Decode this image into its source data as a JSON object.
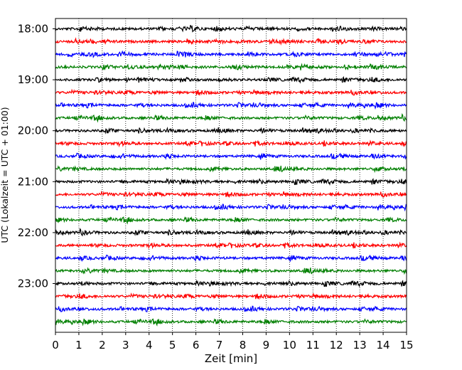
{
  "chart_data": {
    "type": "line",
    "title": "",
    "xlabel": "Zeit  [min]",
    "ylabel": "UTC (Lokalzeit = UTC + 01:00)",
    "xlim": [
      0,
      15
    ],
    "xticks": [
      "0",
      "1",
      "2",
      "3",
      "4",
      "5",
      "6",
      "7",
      "8",
      "9",
      "10",
      "11",
      "12",
      "13",
      "14",
      "15"
    ],
    "yticks": [
      "18:00",
      "19:00",
      "20:00",
      "21:00",
      "22:00",
      "23:00"
    ],
    "ylim": [
      "23:60",
      "17:45"
    ],
    "grid": "vertical dotted",
    "trace_interval_min": 15,
    "trace_start": "18:00",
    "trace_count": 24,
    "trace_colors": [
      "#000000",
      "#ff0000",
      "#0000ff",
      "#007f00"
    ]
  }
}
